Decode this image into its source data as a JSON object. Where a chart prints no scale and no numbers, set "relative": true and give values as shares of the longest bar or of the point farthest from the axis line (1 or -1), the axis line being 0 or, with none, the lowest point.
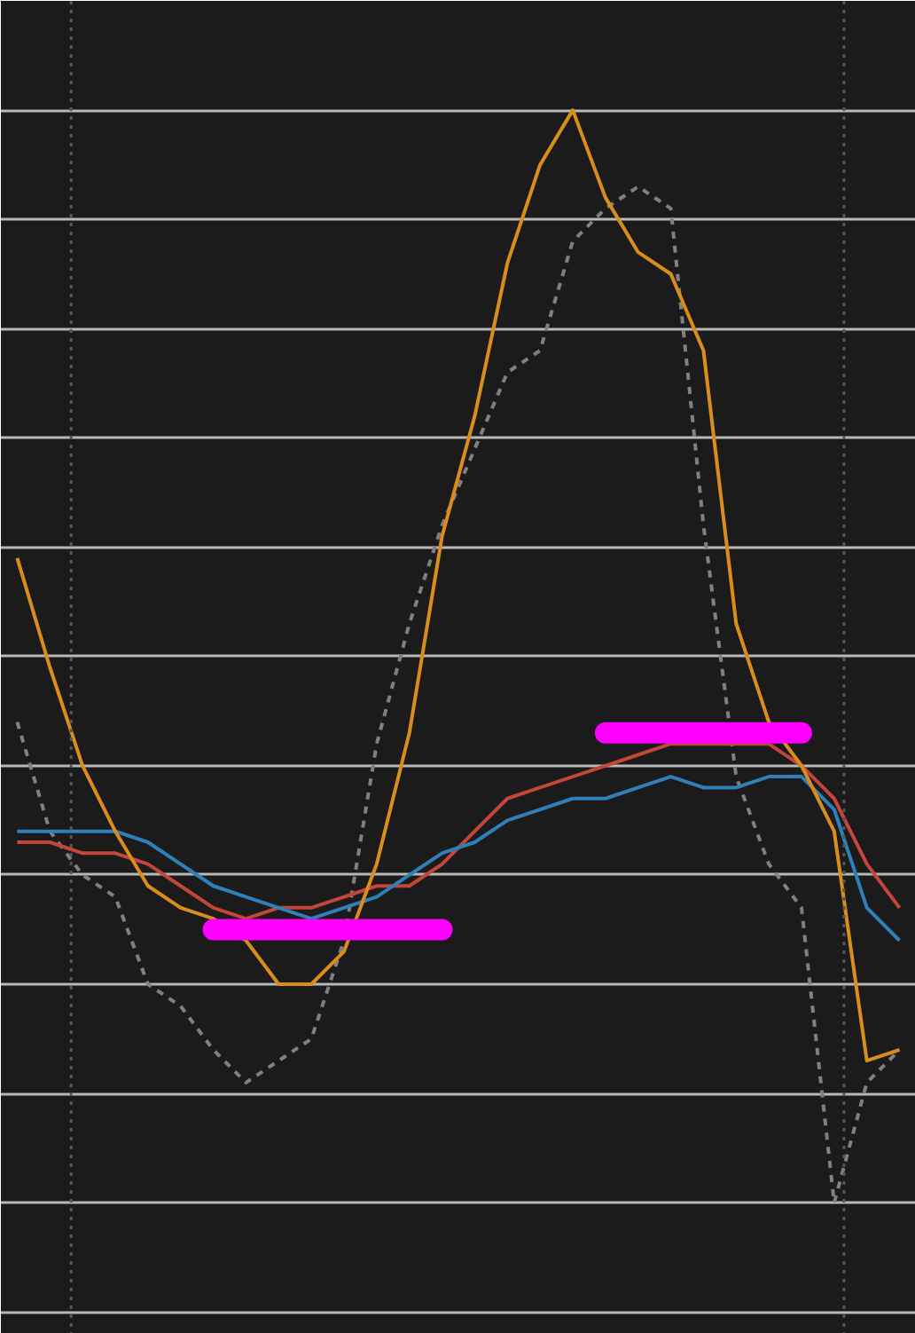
{
  "chart_data": {
    "type": "line",
    "relative": true,
    "grid": "y",
    "tick_labels": false,
    "categories": [
      null,
      null,
      null,
      null,
      null,
      null,
      null,
      null,
      null,
      null,
      null,
      null,
      null,
      null,
      null,
      null,
      null,
      null,
      null,
      null,
      null,
      null,
      null,
      null,
      null,
      null,
      null,
      null
    ],
    "series": [
      {
        "color": "#808080",
        "line_style": "dashed",
        "values": [
          0.44,
          0.34,
          0.3,
          0.28,
          0.2,
          0.18,
          0.14,
          0.11,
          0.13,
          0.15,
          0.24,
          0.42,
          0.53,
          0.62,
          0.69,
          0.76,
          0.78,
          0.88,
          0.91,
          0.93,
          0.91,
          0.62,
          0.39,
          0.31,
          0.27,
          0.0,
          0.11,
          0.14
        ]
      },
      {
        "color": "#c4453a",
        "line_style": "solid",
        "values": [
          0.33,
          0.33,
          0.32,
          0.32,
          0.31,
          0.29,
          0.27,
          0.26,
          0.27,
          0.27,
          0.28,
          0.29,
          0.29,
          0.31,
          0.34,
          0.37,
          0.38,
          0.39,
          0.4,
          0.41,
          0.42,
          0.42,
          0.42,
          0.42,
          0.4,
          0.37,
          0.31,
          0.27
        ]
      },
      {
        "color": "#2f80b9",
        "line_style": "solid",
        "values": [
          0.34,
          0.34,
          0.34,
          0.34,
          0.33,
          0.31,
          0.29,
          0.28,
          0.27,
          0.26,
          0.27,
          0.28,
          0.3,
          0.32,
          0.33,
          0.35,
          0.36,
          0.37,
          0.37,
          0.38,
          0.39,
          0.38,
          0.38,
          0.39,
          0.39,
          0.36,
          0.27,
          0.24
        ]
      },
      {
        "color": "#d98d1c",
        "line_style": "solid",
        "values": [
          0.59,
          0.49,
          0.4,
          0.34,
          0.29,
          0.27,
          0.26,
          0.24,
          0.2,
          0.2,
          0.23,
          0.31,
          0.43,
          0.61,
          0.72,
          0.86,
          0.95,
          1.0,
          0.92,
          0.87,
          0.85,
          0.78,
          0.53,
          0.44,
          0.4,
          0.34,
          0.13,
          0.14
        ]
      },
      {
        "color": "#ff00ff",
        "line_style": "solid",
        "values": [
          null,
          null,
          null,
          null,
          null,
          null,
          0.25,
          0.25,
          0.25,
          0.25,
          0.25,
          0.25,
          0.25,
          0.25,
          null,
          null,
          null,
          null,
          null,
          null,
          null,
          null,
          null,
          null,
          null,
          null,
          null,
          null
        ]
      },
      {
        "color": "#ff00ff",
        "line_style": "solid",
        "values": [
          null,
          null,
          null,
          null,
          null,
          null,
          null,
          null,
          null,
          null,
          null,
          null,
          null,
          null,
          null,
          null,
          null,
          null,
          0.43,
          0.43,
          0.43,
          0.43,
          0.43,
          0.43,
          0.43,
          null,
          null,
          null
        ]
      }
    ]
  }
}
